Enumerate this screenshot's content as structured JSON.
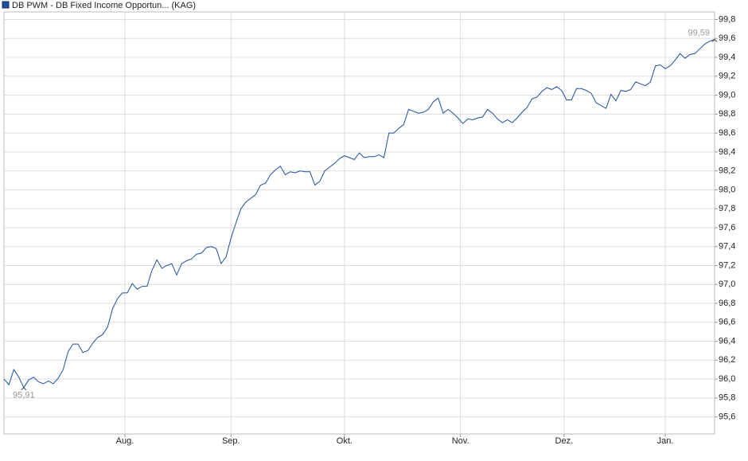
{
  "chart_data": {
    "type": "line",
    "series": [
      {
        "name": "DB PWM - DB Fixed Income Opportun... (KAG)",
        "color": "#1f4f9e",
        "values": [
          96.0,
          95.94,
          96.1,
          96.02,
          95.91,
          95.99,
          96.02,
          95.97,
          95.95,
          95.98,
          95.95,
          96.01,
          96.1,
          96.29,
          96.37,
          96.37,
          96.28,
          96.3,
          96.38,
          96.44,
          96.47,
          96.55,
          96.74,
          96.85,
          96.91,
          96.91,
          97.01,
          96.95,
          96.98,
          96.98,
          97.15,
          97.26,
          97.17,
          97.2,
          97.22,
          97.1,
          97.22,
          97.25,
          97.27,
          97.32,
          97.33,
          97.39,
          97.4,
          97.38,
          97.22,
          97.29,
          97.49,
          97.65,
          97.8,
          97.87,
          97.91,
          97.95,
          98.05,
          98.07,
          98.16,
          98.21,
          98.25,
          98.16,
          98.19,
          98.18,
          98.2,
          98.19,
          98.19,
          98.05,
          98.09,
          98.2,
          98.24,
          98.28,
          98.33,
          98.36,
          98.34,
          98.32,
          98.39,
          98.34,
          98.35,
          98.35,
          98.37,
          98.34,
          98.6,
          98.6,
          98.65,
          98.69,
          98.85,
          98.83,
          98.81,
          98.82,
          98.85,
          98.93,
          98.97,
          98.81,
          98.85,
          98.81,
          98.76,
          98.7,
          98.75,
          98.74,
          98.76,
          98.77,
          98.85,
          98.81,
          98.75,
          98.71,
          98.74,
          98.71,
          98.76,
          98.82,
          98.87,
          98.96,
          98.98,
          99.04,
          99.08,
          99.06,
          99.09,
          99.05,
          98.95,
          98.95,
          99.07,
          99.07,
          99.05,
          99.02,
          98.92,
          98.89,
          98.86,
          99.01,
          98.94,
          99.05,
          99.04,
          99.06,
          99.14,
          99.12,
          99.1,
          99.14,
          99.31,
          99.32,
          99.28,
          99.31,
          99.37,
          99.44,
          99.39,
          99.43,
          99.44,
          99.49,
          99.54,
          99.57,
          99.59
        ]
      }
    ],
    "x": [
      0,
      1,
      2,
      3,
      4,
      5,
      6,
      7,
      8,
      9,
      10,
      11,
      12,
      13,
      14,
      15,
      16,
      17,
      18,
      19,
      20,
      21,
      22,
      23,
      24,
      25,
      26,
      27,
      28,
      29,
      30,
      31,
      32,
      33,
      34,
      35,
      36,
      37,
      38,
      39,
      40,
      41,
      42,
      43,
      44,
      45,
      46,
      47,
      48,
      49,
      50,
      51,
      52,
      53,
      54,
      55,
      56,
      57,
      58,
      59,
      60,
      61,
      62,
      63,
      64,
      65,
      66,
      67,
      68,
      69,
      70,
      71,
      72,
      73,
      74,
      75,
      76,
      77,
      78,
      79,
      80,
      81,
      82,
      83,
      84,
      85,
      86,
      87,
      88,
      89,
      90,
      91,
      92,
      93,
      94,
      95,
      96,
      97,
      98,
      99,
      100,
      101,
      102,
      103,
      104,
      105,
      106,
      107,
      108,
      109,
      110,
      111,
      112,
      113,
      114,
      115,
      116,
      117,
      118,
      119,
      120,
      121,
      122,
      123,
      124,
      125,
      126,
      127,
      128,
      129,
      130,
      131,
      132,
      133,
      134,
      135,
      136,
      137,
      138,
      139,
      140,
      141,
      142,
      143,
      144
    ],
    "xlim": [
      0,
      144
    ],
    "xticks": [
      {
        "value": 24.5,
        "label": "Aug."
      },
      {
        "value": 46,
        "label": "Sep."
      },
      {
        "value": 69,
        "label": "Okt."
      },
      {
        "value": 92.5,
        "label": "Nov."
      },
      {
        "value": 113.5,
        "label": "Dez."
      },
      {
        "value": 134,
        "label": "Jan."
      }
    ],
    "ylim": [
      95.42,
      99.88
    ],
    "yticks": [
      {
        "value": 95.6,
        "label": "95,6"
      },
      {
        "value": 95.8,
        "label": "95,8"
      },
      {
        "value": 96.0,
        "label": "96,0"
      },
      {
        "value": 96.2,
        "label": "96,2"
      },
      {
        "value": 96.4,
        "label": "96,4"
      },
      {
        "value": 96.6,
        "label": "96,6"
      },
      {
        "value": 96.8,
        "label": "96,8"
      },
      {
        "value": 97.0,
        "label": "97,0"
      },
      {
        "value": 97.2,
        "label": "97,2"
      },
      {
        "value": 97.4,
        "label": "97,4"
      },
      {
        "value": 97.6,
        "label": "97,6"
      },
      {
        "value": 97.8,
        "label": "97,8"
      },
      {
        "value": 98.0,
        "label": "98,0"
      },
      {
        "value": 98.2,
        "label": "98,2"
      },
      {
        "value": 98.4,
        "label": "98,4"
      },
      {
        "value": 98.6,
        "label": "98,6"
      },
      {
        "value": 98.8,
        "label": "98,8"
      },
      {
        "value": 99.0,
        "label": "99,0"
      },
      {
        "value": 99.2,
        "label": "99,2"
      },
      {
        "value": 99.4,
        "label": "99,4"
      },
      {
        "value": 99.6,
        "label": "99,6"
      },
      {
        "value": 99.8,
        "label": "99,8"
      }
    ],
    "grid": true,
    "annotations": [
      {
        "x": 4,
        "y": 95.91,
        "label": "95,91"
      },
      {
        "x": 144,
        "y": 99.59,
        "label": "99,59"
      }
    ]
  }
}
